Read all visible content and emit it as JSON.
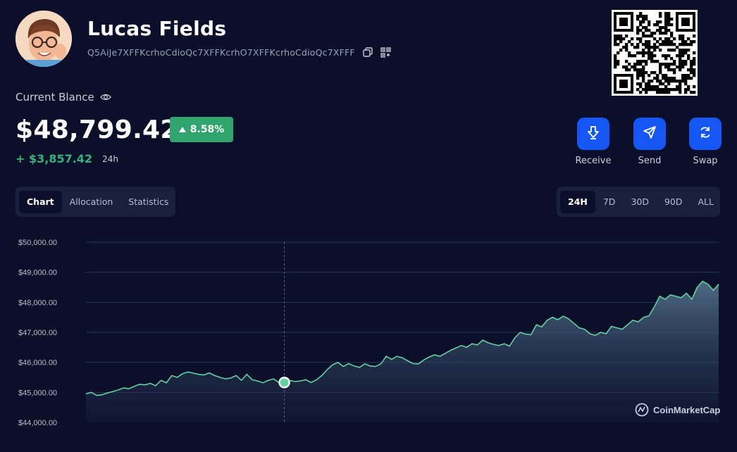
{
  "profile": {
    "name": "Lucas Fields",
    "address": "Q5AiJe7XFFKcrhoCdioQc7XFFKcrhO7XFFKcrhoCdioQc7XFFF"
  },
  "balance": {
    "label": "Current Blance",
    "value": "$48,799.42",
    "change_pct": "8.58%",
    "change_value": "+ $3,857.42",
    "change_period": "24h"
  },
  "actions": [
    {
      "label": "Receive",
      "icon": "receive-icon"
    },
    {
      "label": "Send",
      "icon": "send-icon"
    },
    {
      "label": "Swap",
      "icon": "swap-icon"
    }
  ],
  "view_tabs": [
    {
      "label": "Chart",
      "active": true
    },
    {
      "label": "Allocation",
      "active": false
    },
    {
      "label": "Statistics",
      "active": false
    }
  ],
  "range_tabs": [
    {
      "label": "24H",
      "active": true
    },
    {
      "label": "7D",
      "active": false
    },
    {
      "label": "30D",
      "active": false
    },
    {
      "label": "90D",
      "active": false
    },
    {
      "label": "ALL",
      "active": false
    }
  ],
  "colors": {
    "accent": "#1457f5",
    "positive": "#2fa56d",
    "line": "#5fd3a2",
    "background": "#0b0f2a"
  },
  "watermark": "CoinMarketCap",
  "chart_data": {
    "type": "area",
    "y_ticks": [
      "$50,000.00",
      "$49,000.00",
      "$48,000.00",
      "$47,000.00",
      "$46,000.00",
      "$45,000.00",
      "$44,000.00"
    ],
    "ylim": [
      44000,
      50000
    ],
    "grid": true,
    "hover_index": 37,
    "values": [
      44950,
      45000,
      44900,
      44920,
      44980,
      45030,
      45080,
      45150,
      45120,
      45200,
      45270,
      45250,
      45300,
      45220,
      45400,
      45320,
      45560,
      45500,
      45620,
      45680,
      45640,
      45600,
      45580,
      45650,
      45560,
      45500,
      45450,
      45480,
      45560,
      45400,
      45600,
      45420,
      45380,
      45320,
      45400,
      45450,
      45320,
      45330,
      45400,
      45360,
      45380,
      45420,
      45330,
      45420,
      45560,
      45760,
      45920,
      46000,
      45860,
      45960,
      45880,
      45830,
      45950,
      45880,
      45860,
      45950,
      46200,
      46100,
      46200,
      46150,
      46050,
      45960,
      45950,
      46080,
      46180,
      46250,
      46200,
      46300,
      46400,
      46480,
      46560,
      46500,
      46620,
      46580,
      46740,
      46650,
      46600,
      46560,
      46620,
      46540,
      46820,
      47000,
      46940,
      46920,
      47250,
      47180,
      47400,
      47500,
      47420,
      47540,
      47450,
      47300,
      47150,
      47100,
      46950,
      46900,
      47000,
      46950,
      47200,
      47150,
      47100,
      47250,
      47400,
      47350,
      47500,
      47550,
      47850,
      48200,
      48100,
      48250,
      48200,
      48150,
      48300,
      48100,
      48500,
      48700,
      48600,
      48400,
      48600
    ]
  }
}
